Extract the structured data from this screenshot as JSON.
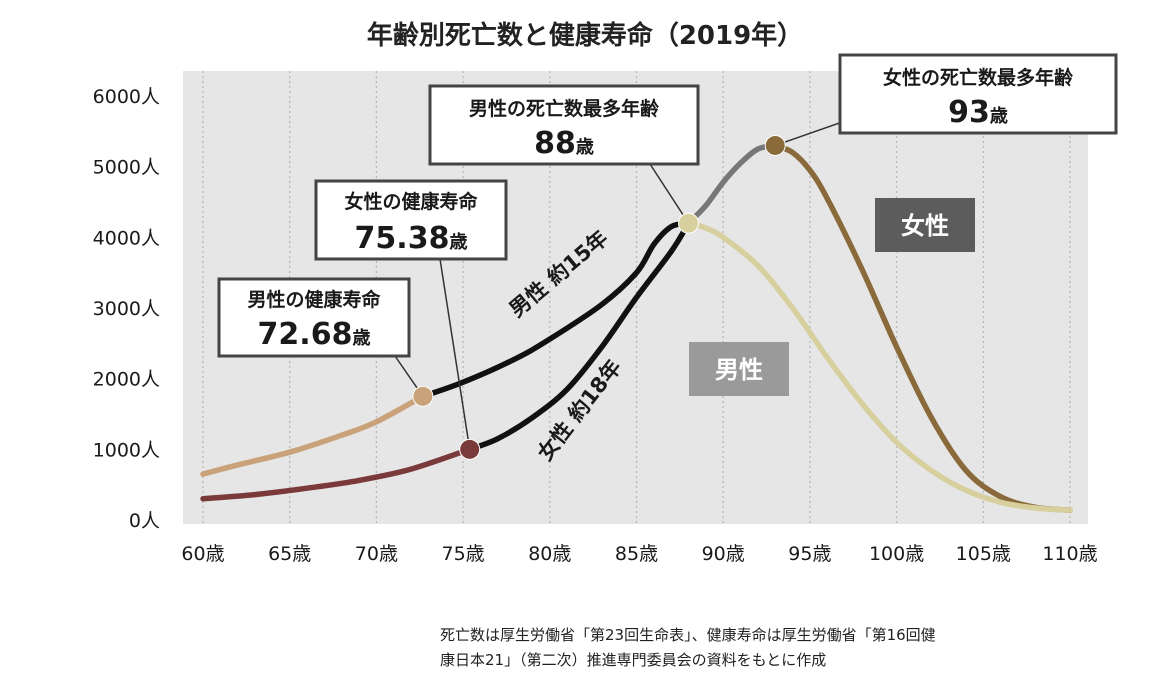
{
  "chart_data": {
    "type": "line",
    "title": "年齢別死亡数と健康寿命（2019年）",
    "x_tick_labels": [
      "60歳",
      "65歳",
      "70歳",
      "75歳",
      "80歳",
      "85歳",
      "90歳",
      "95歳",
      "100歳",
      "105歳",
      "110歳"
    ],
    "y_tick_labels": [
      "0人",
      "1000人",
      "2000人",
      "3000人",
      "4000人",
      "5000人",
      "6000人"
    ],
    "xlim": [
      60,
      110
    ],
    "ylim": [
      0,
      6000
    ],
    "grid": "vertical dotted",
    "series": [
      {
        "name": "男性",
        "color_before": "#c9a27a",
        "color_after": "#111111",
        "color_decline": "#d8cf9e",
        "points": [
          [
            60,
            650
          ],
          [
            62,
            780
          ],
          [
            65,
            960
          ],
          [
            68,
            1200
          ],
          [
            70,
            1390
          ],
          [
            72.68,
            1750
          ],
          [
            75,
            1950
          ],
          [
            78,
            2280
          ],
          [
            80,
            2560
          ],
          [
            83,
            3050
          ],
          [
            85,
            3500
          ],
          [
            86,
            3900
          ],
          [
            87,
            4150
          ],
          [
            88,
            4200
          ],
          [
            89,
            4130
          ],
          [
            90,
            4000
          ],
          [
            92,
            3600
          ],
          [
            94,
            3000
          ],
          [
            96,
            2300
          ],
          [
            98,
            1650
          ],
          [
            100,
            1100
          ],
          [
            102,
            700
          ],
          [
            104,
            420
          ],
          [
            106,
            250
          ],
          [
            108,
            170
          ],
          [
            110,
            140
          ]
        ]
      },
      {
        "name": "女性",
        "color_before": "#7a3a3a",
        "color_after": "#111111",
        "color_middle": "#777777",
        "color_decline": "#8a6a3a",
        "points": [
          [
            60,
            300
          ],
          [
            63,
            360
          ],
          [
            66,
            450
          ],
          [
            69,
            560
          ],
          [
            72,
            720
          ],
          [
            75.38,
            1000
          ],
          [
            77,
            1150
          ],
          [
            79,
            1450
          ],
          [
            81,
            1850
          ],
          [
            83,
            2450
          ],
          [
            85,
            3150
          ],
          [
            87,
            3800
          ],
          [
            88,
            4200
          ],
          [
            89,
            4450
          ],
          [
            90,
            4780
          ],
          [
            91,
            5050
          ],
          [
            92,
            5250
          ],
          [
            93,
            5300
          ],
          [
            94,
            5200
          ],
          [
            95,
            4950
          ],
          [
            96,
            4550
          ],
          [
            98,
            3550
          ],
          [
            100,
            2450
          ],
          [
            102,
            1450
          ],
          [
            104,
            700
          ],
          [
            106,
            330
          ],
          [
            108,
            180
          ],
          [
            110,
            140
          ]
        ]
      }
    ],
    "markers": [
      {
        "name": "男性健康寿命",
        "x": 72.68,
        "y": 1750,
        "color": "#c9a27a"
      },
      {
        "name": "女性健康寿命",
        "x": 75.38,
        "y": 1000,
        "color": "#7a3a3a"
      },
      {
        "name": "男性死亡数最多",
        "x": 88,
        "y": 4200,
        "color": "#d8cf9e"
      },
      {
        "name": "女性死亡数最多",
        "x": 93,
        "y": 5300,
        "color": "#8a6a3a"
      }
    ],
    "annotations": {
      "male_healthy_label": "男性の健康寿命",
      "male_healthy_value": "72.68",
      "female_healthy_label": "女性の健康寿命",
      "female_healthy_value": "75.38",
      "male_peak_label": "男性の死亡数最多年齢",
      "male_peak_value": "88",
      "female_peak_label": "女性の死亡数最多年齢",
      "female_peak_value": "93",
      "unit": "歳",
      "male_gap": "男性 約15年",
      "female_gap": "女性 約18年",
      "female_series_tag": "女性",
      "male_series_tag": "男性"
    }
  },
  "footnote": {
    "line1": "死亡数は厚生労働省「第23回生命表」、健康寿命は厚生労働省「第16回健",
    "line2": "康日本21」（第二次）推進専門委員会の資料をもとに作成"
  },
  "colors": {
    "plot_bg": "#e6e6e6",
    "grid": "#b8b8b8",
    "female_tag_bg": "#5c5c5c",
    "male_tag_bg": "#9a9a9a",
    "box_border": "#444444"
  }
}
